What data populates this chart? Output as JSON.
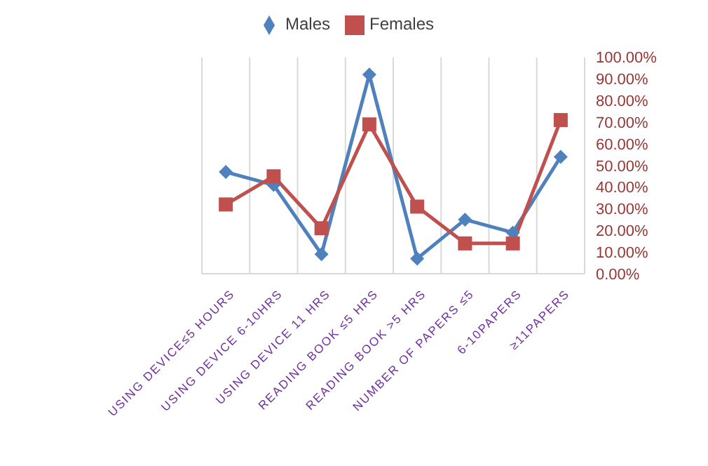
{
  "chart_data": {
    "type": "line",
    "categories": [
      "USING DEVICE≤5 HOURS",
      "USING DEVICE 6-10HRS",
      "USING DEVICE 11 HRS",
      "READING BOOK ≤5 HRS",
      "READING BOOK >5 HRS",
      "NUMBER OF PAPERS ≤5",
      "6-10PAPERS",
      "≥11PAPERS"
    ],
    "series": [
      {
        "name": "Males",
        "color": "#4f81bd",
        "marker": "diamond",
        "values": [
          47,
          41,
          9,
          92,
          7,
          25,
          19,
          54
        ]
      },
      {
        "name": "Females",
        "color": "#c0504d",
        "marker": "square",
        "values": [
          32,
          45,
          21,
          69,
          31,
          14,
          14,
          71
        ]
      }
    ],
    "ylim": [
      0,
      100
    ],
    "yticks": [
      {
        "value": 0,
        "label": "0.00%"
      },
      {
        "value": 10,
        "label": "10.00%"
      },
      {
        "value": 20,
        "label": "20.00%"
      },
      {
        "value": 30,
        "label": "30.00%"
      },
      {
        "value": 40,
        "label": "40.00%"
      },
      {
        "value": 50,
        "label": "50.00%"
      },
      {
        "value": 60,
        "label": "60.00%"
      },
      {
        "value": 70,
        "label": "70.00%"
      },
      {
        "value": 80,
        "label": "80.00%"
      },
      {
        "value": 90,
        "label": "90.00%"
      },
      {
        "value": 100,
        "label": "100.00%"
      }
    ],
    "grid": "x",
    "legend": "top"
  }
}
